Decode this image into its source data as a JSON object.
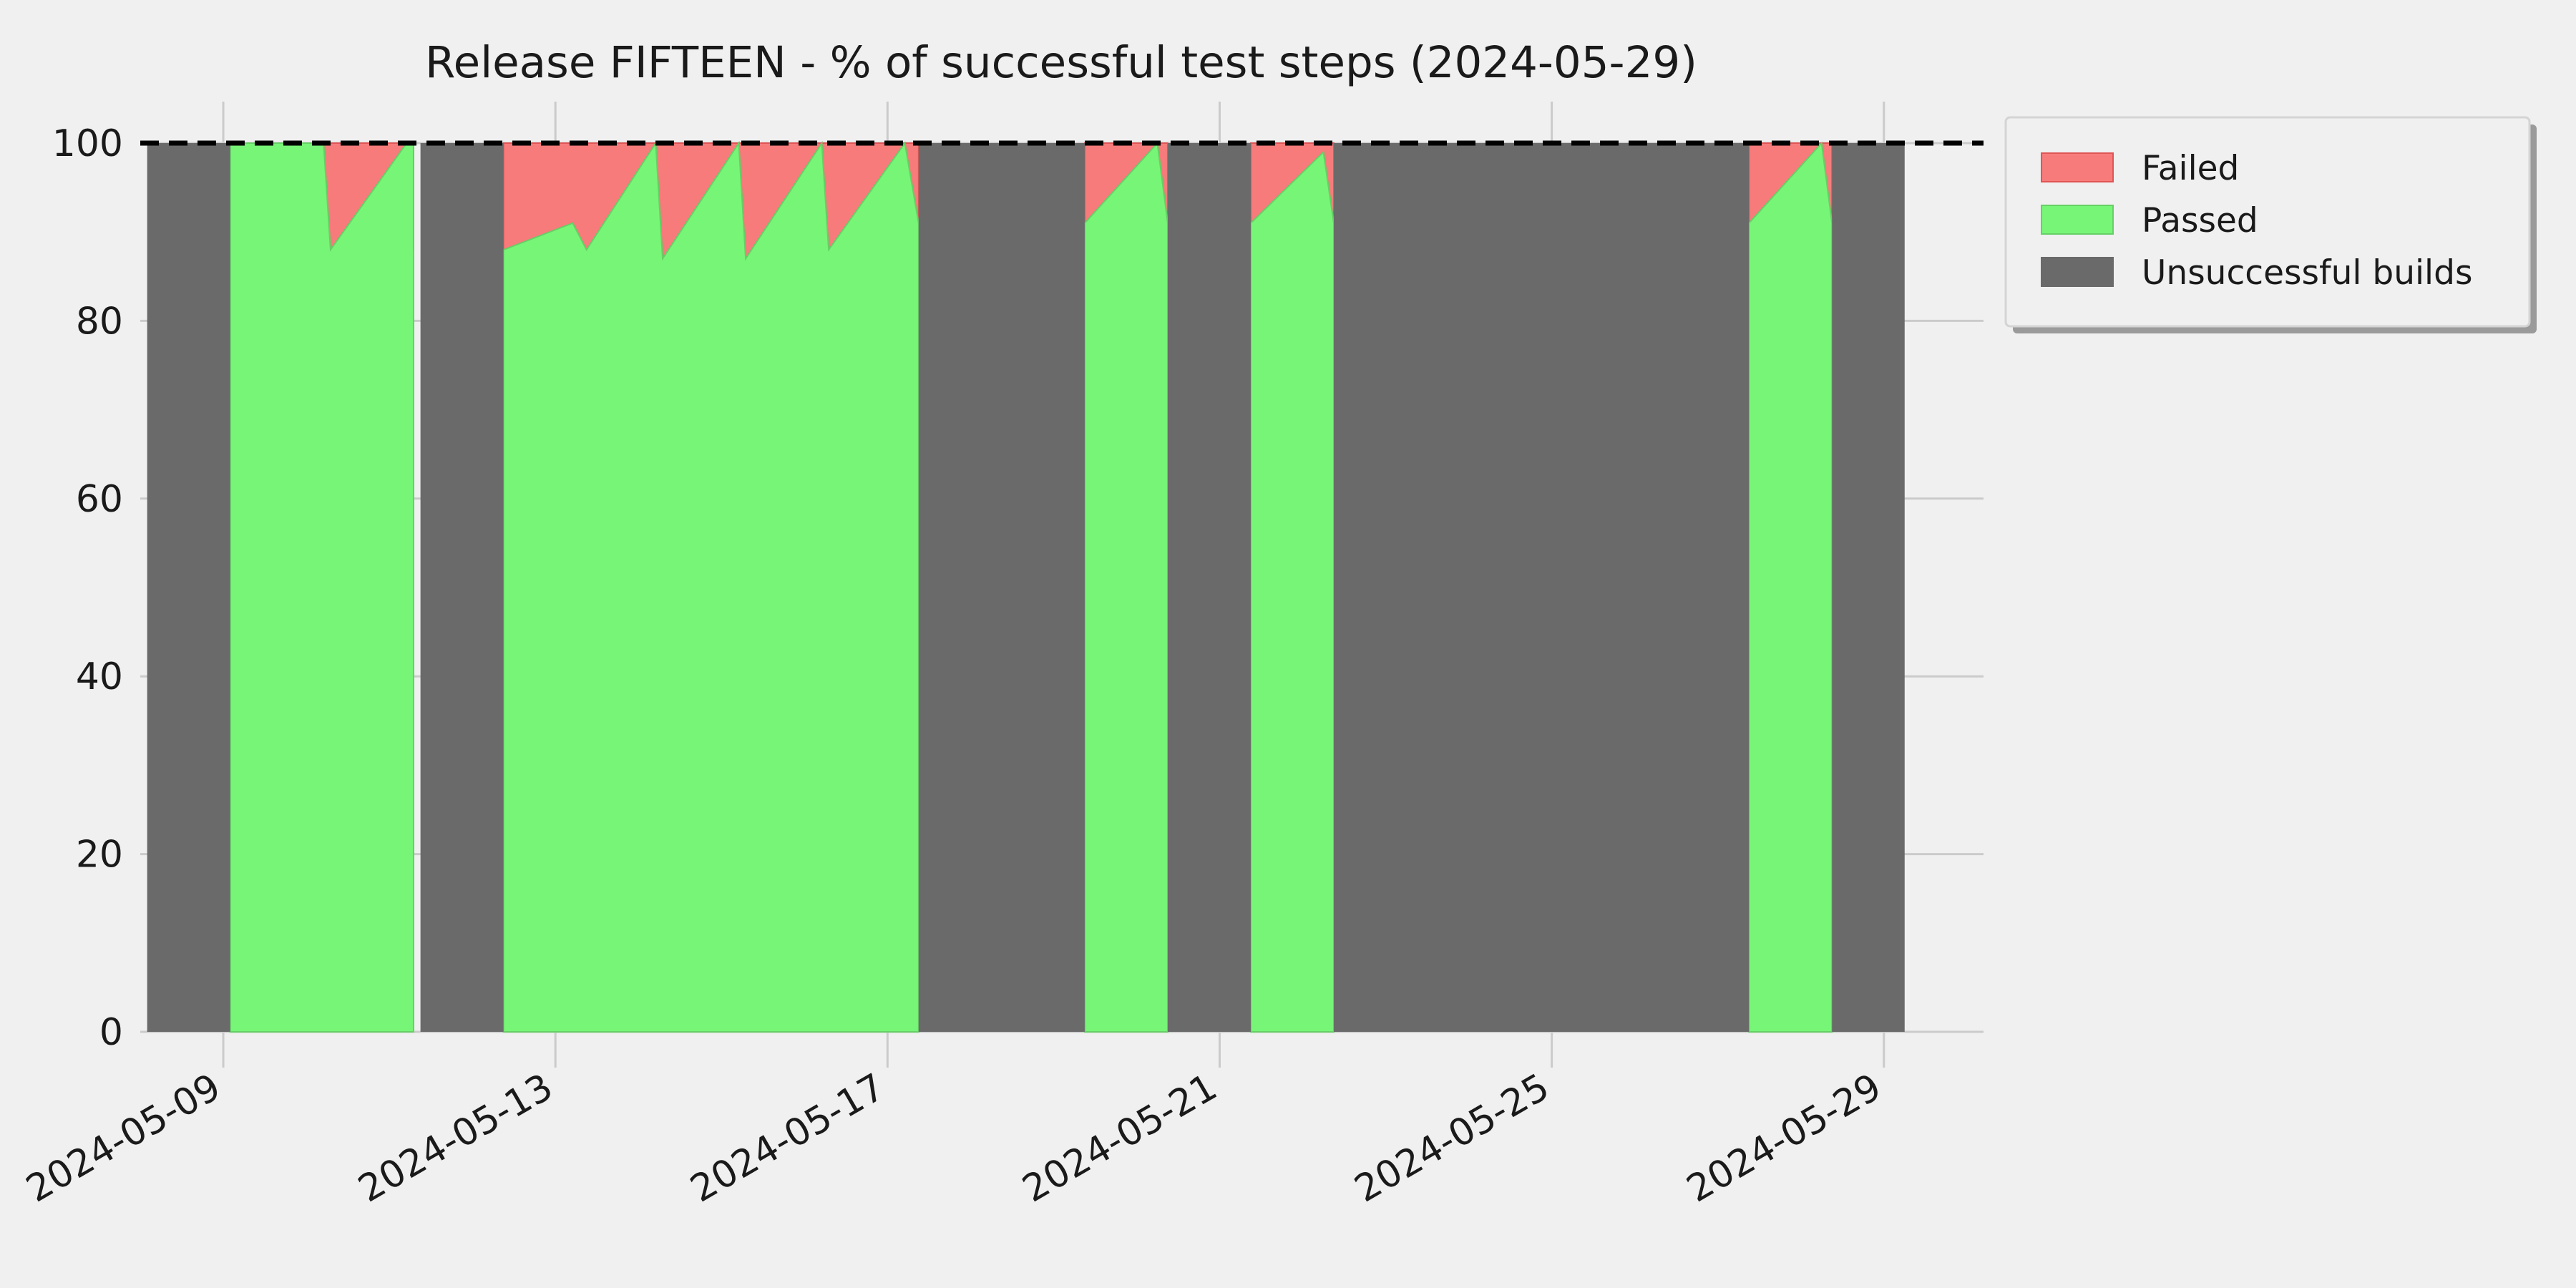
{
  "chart_data": {
    "type": "area",
    "title": "Release FIFTEEN - % of successful test steps (2024-05-29)",
    "xlabel": "",
    "ylabel": "",
    "x_type": "date",
    "x_ticks": [
      "2024-05-09",
      "2024-05-13",
      "2024-05-17",
      "2024-05-21",
      "2024-05-25",
      "2024-05-29"
    ],
    "y_ticks": [
      0,
      20,
      40,
      60,
      80,
      100
    ],
    "xlim": [
      "2024-05-08 00:00",
      "2024-05-30 04:48"
    ],
    "ylim": [
      0,
      100
    ],
    "grid": true,
    "reference_line": {
      "y": 100,
      "style": "dashed",
      "color": "#000000"
    },
    "legend": {
      "placement": "outside-right-top"
    },
    "colors": {
      "failed": "#f77b7b",
      "failed_edge": "#e05555",
      "passed": "#77f577",
      "passed_edge": "#66d066",
      "unsuccessful": "#6a6a6a",
      "background": "#f0f0f0",
      "grid": "#cbcbcb"
    },
    "series": [
      {
        "name": "Failed",
        "kind": "stacked-top",
        "segments": [
          [
            [
              "2024-05-09 02:00",
              100
            ],
            [
              "2024-05-09 04:00",
              100
            ],
            [
              "2024-05-10 05:00",
              100
            ],
            [
              "2024-05-10 07:00",
              88
            ],
            [
              "2024-05-11 05:00",
              100
            ],
            [
              "2024-05-11 07:00",
              100
            ],
            [
              "2024-05-11 07:00",
              88
            ]
          ],
          [
            [
              "2024-05-12 09:00",
              88
            ],
            [
              "2024-05-13 05:00",
              91
            ],
            [
              "2024-05-13 09:00",
              88
            ],
            [
              "2024-05-14 05:00",
              100
            ],
            [
              "2024-05-14 07:00",
              87
            ],
            [
              "2024-05-15 05:00",
              100
            ],
            [
              "2024-05-15 07:00",
              87
            ],
            [
              "2024-05-16 05:00",
              100
            ],
            [
              "2024-05-16 07:00",
              88
            ],
            [
              "2024-05-17 05:00",
              100
            ],
            [
              "2024-05-17 09:00",
              91
            ]
          ],
          [
            [
              "2024-05-19 09:00",
              91
            ],
            [
              "2024-05-20 06:00",
              100
            ],
            [
              "2024-05-20 09:00",
              91
            ]
          ],
          [
            [
              "2024-05-21 09:00",
              91
            ],
            [
              "2024-05-22 06:00",
              99
            ],
            [
              "2024-05-22 09:00",
              91
            ]
          ],
          [
            [
              "2024-05-27 09:00",
              91
            ],
            [
              "2024-05-28 06:00",
              100
            ],
            [
              "2024-05-28 09:00",
              91
            ]
          ]
        ]
      },
      {
        "name": "Passed",
        "kind": "stacked-bottom"
      },
      {
        "name": "Unsuccessful builds",
        "kind": "ranges",
        "ranges": [
          [
            "2024-05-08 02:00",
            "2024-05-09 02:00"
          ],
          [
            "2024-05-11 09:00",
            "2024-05-12 09:00"
          ],
          [
            "2024-05-17 09:00",
            "2024-05-19 09:00"
          ],
          [
            "2024-05-20 09:00",
            "2024-05-21 09:00"
          ],
          [
            "2024-05-22 09:00",
            "2024-05-27 09:00"
          ],
          [
            "2024-05-28 09:00",
            "2024-05-29 06:00"
          ]
        ]
      }
    ]
  }
}
